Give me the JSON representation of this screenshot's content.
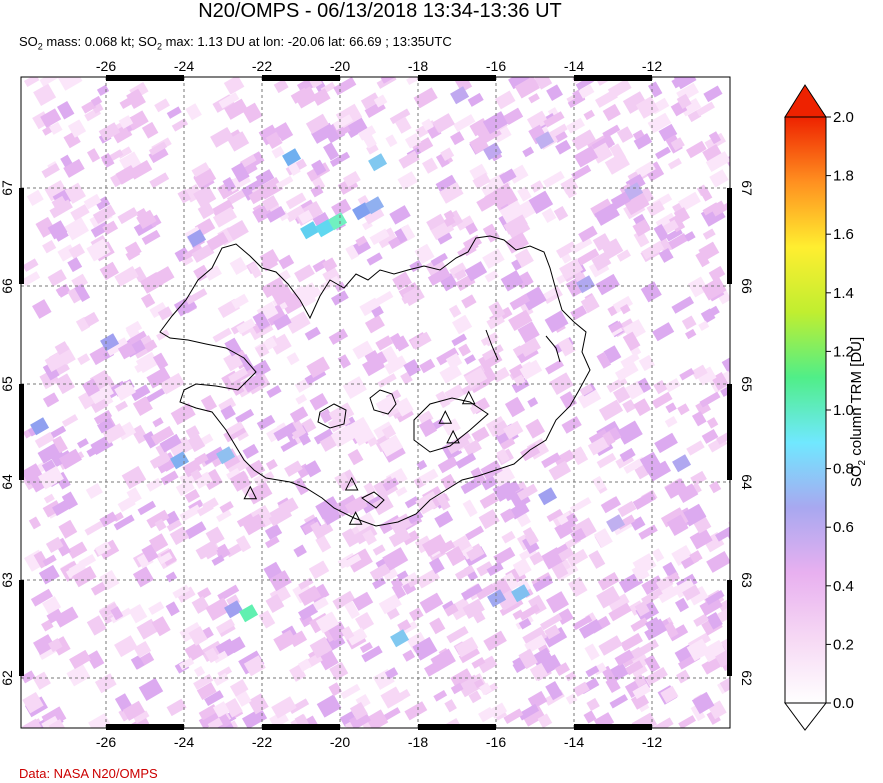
{
  "title": "N20/OMPS - 06/13/2018 13:34-13:36 UT",
  "subtitle": {
    "p1": "SO",
    "p1_sub": "2",
    "p2": " mass: 0.068 kt; SO",
    "p2_sub": "2",
    "p3": " max: 1.13 DU at lon: -20.06 lat: 66.69 ; 13:35UTC"
  },
  "credit": "Data: NASA N20/OMPS",
  "map": {
    "lon_ticks": [
      "-26",
      "-24",
      "-22",
      "-20",
      "-18",
      "-16",
      "-14",
      "-12"
    ],
    "lat_ticks": [
      "67",
      "66",
      "65",
      "64",
      "63",
      "62"
    ],
    "volcano_icon": "triangle-icon",
    "volcanoes": [
      {
        "lon": -17.3,
        "lat": 64.65
      },
      {
        "lon": -16.7,
        "lat": 64.85
      },
      {
        "lon": -17.1,
        "lat": 64.45
      },
      {
        "lon": -19.7,
        "lat": 63.97
      },
      {
        "lon": -22.3,
        "lat": 63.88
      },
      {
        "lon": -19.6,
        "lat": 63.62
      }
    ]
  },
  "colorbar": {
    "title_main": "SO",
    "title_sub": "2",
    "title_rest": " column TRM [DU]",
    "ticks": [
      "2.0",
      "1.8",
      "1.6",
      "1.4",
      "1.2",
      "1.0",
      "0.8",
      "0.6",
      "0.4",
      "0.2",
      "0.0"
    ],
    "stops": [
      "#ffffff",
      "#f6d8f4",
      "#e8b0f0",
      "#a8a8f0",
      "#70e8ff",
      "#50ee88",
      "#c0ee30",
      "#ffee30",
      "#ff9020",
      "#ee2200"
    ],
    "over_color": "#ee2200",
    "under_color": "#ffffff"
  }
}
